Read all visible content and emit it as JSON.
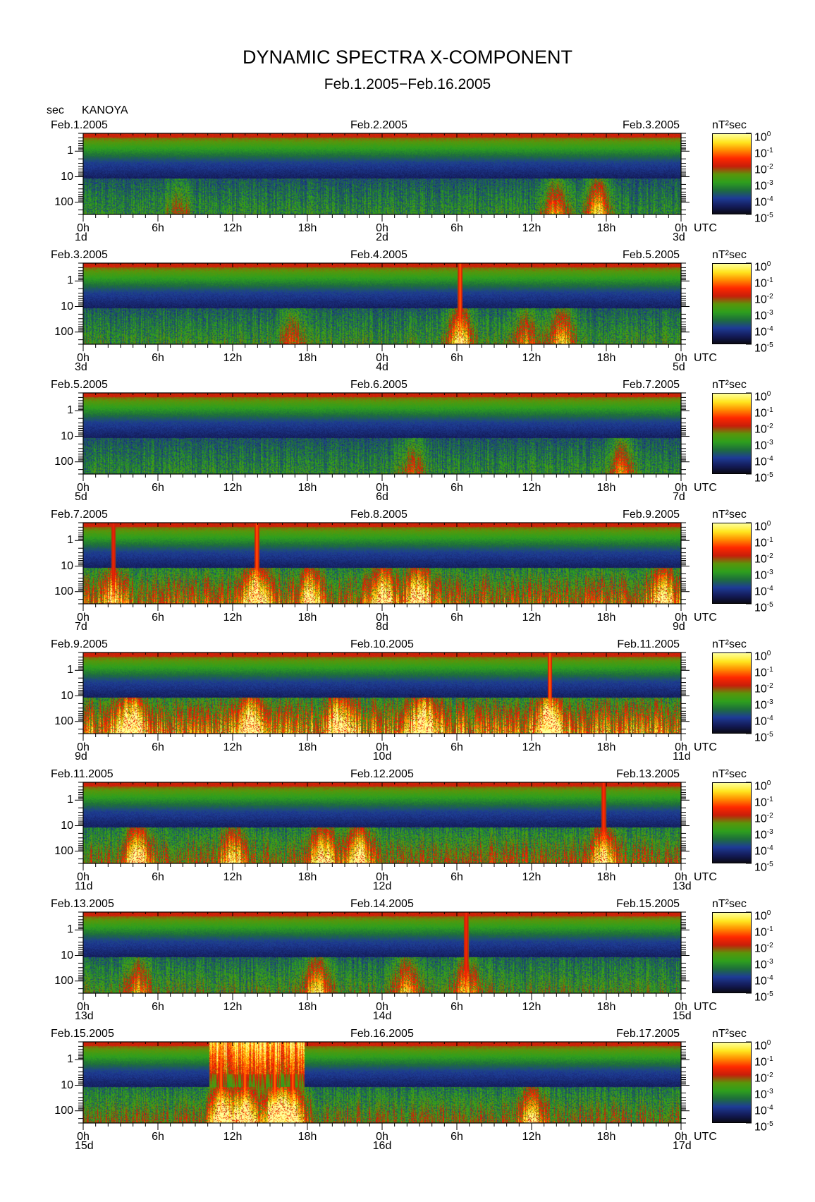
{
  "header": {
    "title": "DYNAMIC SPECTRA X-COMPONENT",
    "subtitle": "Feb.1.2005−Feb.16.2005",
    "unit_label": "sec",
    "station": "KANOYA"
  },
  "colors": {
    "scale": [
      "#0a0a14",
      "#141c5a",
      "#1e3c96",
      "#1e6e3c",
      "#2ea01e",
      "#5a960a",
      "#c81e0a",
      "#ff2800",
      "#ff8c00",
      "#ffe61e",
      "#ffff96"
    ]
  },
  "chart_data": {
    "type": "heatmap",
    "y_axis": {
      "ticks": [
        "1",
        "10",
        "100"
      ],
      "scale": "log",
      "unit": "sec"
    },
    "x_axis": {
      "ticks": [
        "0h",
        "6h",
        "12h",
        "18h",
        "0h",
        "6h",
        "12h",
        "18h",
        "0h"
      ],
      "unit_label": "UTC"
    },
    "colorbar": {
      "unit": "nT²sec",
      "ticks": [
        {
          "base": "10",
          "exp": "0"
        },
        {
          "base": "10",
          "exp": "-1"
        },
        {
          "base": "10",
          "exp": "-2"
        },
        {
          "base": "10",
          "exp": "-3"
        },
        {
          "base": "10",
          "exp": "-4"
        },
        {
          "base": "10",
          "exp": "-5"
        }
      ]
    },
    "panels": [
      {
        "date_left": "Feb.1.2005",
        "date_mid": "Feb.2.2005",
        "date_right": "Feb.3.2005",
        "day_start": "1d",
        "day_mid": "2d",
        "day_end": "3d",
        "activity": 0.35,
        "events": [
          {
            "t": 0.86,
            "lvl": 0.8
          },
          {
            "t": 0.79,
            "lvl": 0.6
          },
          {
            "t": 0.16,
            "lvl": 0.3
          }
        ]
      },
      {
        "date_left": "Feb.3.2005",
        "date_mid": "Feb.4.2005",
        "date_right": "Feb.5.2005",
        "day_start": "3d",
        "day_mid": "4d",
        "day_end": "5d",
        "activity": 0.4,
        "events": [
          {
            "t": 0.63,
            "lvl": 0.9,
            "spike": true
          },
          {
            "t": 0.8,
            "lvl": 0.7
          },
          {
            "t": 0.74,
            "lvl": 0.5
          },
          {
            "t": 0.35,
            "lvl": 0.4
          }
        ]
      },
      {
        "date_left": "Feb.5.2005",
        "date_mid": "Feb.6.2005",
        "date_right": "Feb.7.2005",
        "day_start": "5d",
        "day_mid": "6d",
        "day_end": "7d",
        "activity": 0.35,
        "events": [
          {
            "t": 0.9,
            "lvl": 0.6
          },
          {
            "t": 0.55,
            "lvl": 0.4
          }
        ]
      },
      {
        "date_left": "Feb.7.2005",
        "date_mid": "Feb.8.2005",
        "date_right": "Feb.9.2005",
        "day_start": "7d",
        "day_mid": "8d",
        "day_end": "9d",
        "activity": 0.7,
        "events": [
          {
            "t": 0.29,
            "lvl": 0.9,
            "spike": true
          },
          {
            "t": 0.05,
            "lvl": 0.5,
            "spike": true
          },
          {
            "t": 0.5,
            "lvl": 0.8
          },
          {
            "t": 0.56,
            "lvl": 0.8
          },
          {
            "t": 0.38,
            "lvl": 0.7
          },
          {
            "t": 0.97,
            "lvl": 0.7
          }
        ]
      },
      {
        "date_left": "Feb.9.2005",
        "date_mid": "Feb.10.2005",
        "date_right": "Feb.11.2005",
        "day_start": "9d",
        "day_mid": "10d",
        "day_end": "11d",
        "activity": 0.85,
        "events": [
          {
            "t": 0.78,
            "lvl": 0.95,
            "spike": true
          },
          {
            "t": 0.08,
            "lvl": 0.9
          },
          {
            "t": 0.57,
            "lvl": 0.85
          },
          {
            "t": 0.43,
            "lvl": 0.8
          },
          {
            "t": 0.28,
            "lvl": 0.7
          }
        ]
      },
      {
        "date_left": "Feb.11.2005",
        "date_mid": "Feb.12.2005",
        "date_right": "Feb.13.2005",
        "day_start": "11d",
        "day_mid": "12d",
        "day_end": "13d",
        "activity": 0.6,
        "events": [
          {
            "t": 0.09,
            "lvl": 0.8
          },
          {
            "t": 0.4,
            "lvl": 0.85
          },
          {
            "t": 0.46,
            "lvl": 0.85
          },
          {
            "t": 0.87,
            "lvl": 0.7,
            "spike": true
          },
          {
            "t": 0.25,
            "lvl": 0.6
          }
        ]
      },
      {
        "date_left": "Feb.13.2005",
        "date_mid": "Feb.14.2005",
        "date_right": "Feb.15.2005",
        "day_start": "13d",
        "day_mid": "14d",
        "day_end": "15d",
        "activity": 0.45,
        "events": [
          {
            "t": 0.64,
            "lvl": 0.6,
            "spike": true
          },
          {
            "t": 0.39,
            "lvl": 0.7
          },
          {
            "t": 0.54,
            "lvl": 0.6
          },
          {
            "t": 0.09,
            "lvl": 0.5
          }
        ]
      },
      {
        "date_left": "Feb.15.2005",
        "date_mid": "Feb.16.2005",
        "date_right": "Feb.17.2005",
        "day_start": "15d",
        "day_mid": "16d",
        "day_end": "17d",
        "activity": 0.55,
        "storm": [
          0.21,
          0.37
        ],
        "events": [
          {
            "t": 0.23,
            "lvl": 1.0,
            "spike": true
          },
          {
            "t": 0.27,
            "lvl": 1.0,
            "spike": true
          },
          {
            "t": 0.32,
            "lvl": 1.0,
            "spike": true
          },
          {
            "t": 0.35,
            "lvl": 0.95,
            "spike": true
          },
          {
            "t": 0.75,
            "lvl": 0.7
          }
        ]
      }
    ]
  }
}
